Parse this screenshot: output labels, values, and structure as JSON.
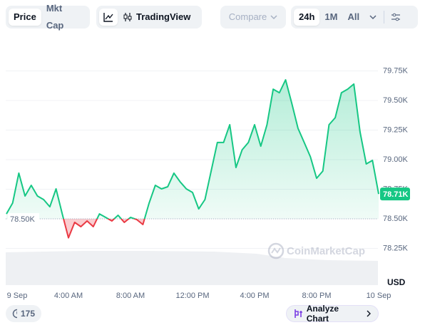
{
  "chart_data": {
    "type": "line",
    "ui": {
      "tabs": [
        "Price",
        "Mkt Cap"
      ],
      "tradingview": "TradingView",
      "compare": "Compare",
      "ranges": [
        "24h",
        "1M",
        "All"
      ],
      "watermark": "CoinMarketCap",
      "comments": 175,
      "analyze": "Analyze Chart"
    },
    "currency": "USD",
    "x": [
      0,
      0.4,
      0.8,
      1.2,
      1.6,
      2.0,
      2.4,
      2.8,
      3.2,
      3.6,
      4.0,
      4.4,
      4.8,
      5.2,
      5.6,
      6.0,
      6.4,
      6.8,
      7.2,
      7.6,
      8.0,
      8.4,
      8.8,
      9.2,
      9.6,
      10.0,
      10.4,
      10.8,
      11.2,
      11.6,
      12.0,
      12.4,
      12.8,
      13.2,
      13.6,
      14.0,
      14.4,
      14.8,
      15.2,
      15.6,
      16.0,
      16.4,
      16.8,
      17.2,
      17.6,
      18.0,
      18.4,
      18.8,
      19.2,
      19.6,
      20.0,
      20.4,
      20.8,
      21.2,
      21.6,
      22.0,
      22.4,
      22.8,
      23.2,
      23.6,
      24.0
    ],
    "values": [
      78542,
      78633,
      78886,
      78693,
      78783,
      78693,
      78663,
      78602,
      78753,
      78542,
      78340,
      78470,
      78434,
      78482,
      78434,
      78542,
      78512,
      78482,
      78530,
      78470,
      78512,
      78494,
      78452,
      78633,
      78783,
      78753,
      78771,
      78886,
      78813,
      78753,
      78723,
      78584,
      78663,
      78904,
      79145,
      79145,
      79295,
      78934,
      79084,
      79145,
      79295,
      79114,
      79295,
      79596,
      79566,
      79675,
      79476,
      79265,
      79145,
      79024,
      78843,
      78904,
      79295,
      79355,
      79566,
      79596,
      79639,
      79235,
      78964,
      78994,
      78710
    ],
    "up_color": "#16c784",
    "down_color": "#ea3943",
    "reference": {
      "value": 78500,
      "label": "78.50K"
    },
    "last_price": {
      "value": 78710,
      "label": "78.71K"
    },
    "xlim": [
      0,
      24
    ],
    "xticks": [
      {
        "value": 0,
        "label": "9 Sep"
      },
      {
        "value": 4,
        "label": "4:00 AM"
      },
      {
        "value": 8,
        "label": "8:00 AM"
      },
      {
        "value": 12,
        "label": "12:00 PM"
      },
      {
        "value": 16,
        "label": "4:00 PM"
      },
      {
        "value": 20,
        "label": "8:00 PM"
      },
      {
        "value": 24,
        "label": "10 Sep"
      }
    ],
    "ylim": [
      77940,
      80000
    ],
    "yticks": [
      {
        "value": 78250,
        "label": "78.25K"
      },
      {
        "value": 78500,
        "label": "78.50K"
      },
      {
        "value": 78750,
        "label": "78.75K"
      },
      {
        "value": 79000,
        "label": "79.00K"
      },
      {
        "value": 79250,
        "label": "79.25K"
      },
      {
        "value": 79500,
        "label": "79.50K"
      },
      {
        "value": 79750,
        "label": "79.75K"
      }
    ],
    "grid": true
  }
}
